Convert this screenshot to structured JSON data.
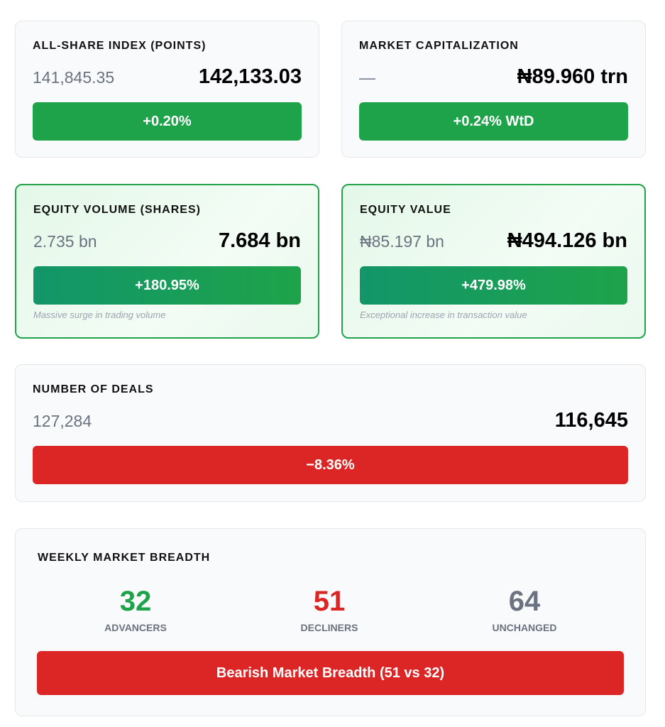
{
  "cards": [
    {
      "title": "ALL-SHARE INDEX (POINTS)",
      "previous": "141,845.35",
      "current": "142,133.03",
      "change": "+0.20%"
    },
    {
      "title": "MARKET CAPITALIZATION",
      "previous": "—",
      "current": "₦89.960 trn",
      "change": "+0.24% WtD"
    },
    {
      "title": "EQUITY VOLUME (SHARES)",
      "previous": "2.735 bn",
      "current": "7.684 bn",
      "change": "+180.95%",
      "note": "Massive surge in trading volume"
    },
    {
      "title": "EQUITY VALUE",
      "previous": "₦85.197 bn",
      "current": "₦494.126 bn",
      "change": "+479.98%",
      "note": "Exceptional increase in transaction value"
    },
    {
      "title": "NUMBER OF DEALS",
      "previous": "127,284",
      "current": "116,645",
      "change": "−8.36%"
    }
  ],
  "breadth": {
    "title": "WEEKLY MARKET BREADTH",
    "advancers": {
      "value": "32",
      "label": "ADVANCERS"
    },
    "decliners": {
      "value": "51",
      "label": "DECLINERS"
    },
    "unchanged": {
      "value": "64",
      "label": "UNCHANGED"
    },
    "summary": "Bearish Market Breadth (51 vs 32)"
  },
  "colors": {
    "positive": "#1ea34a",
    "negative": "#dc2626",
    "neutral": "#6b7280"
  }
}
